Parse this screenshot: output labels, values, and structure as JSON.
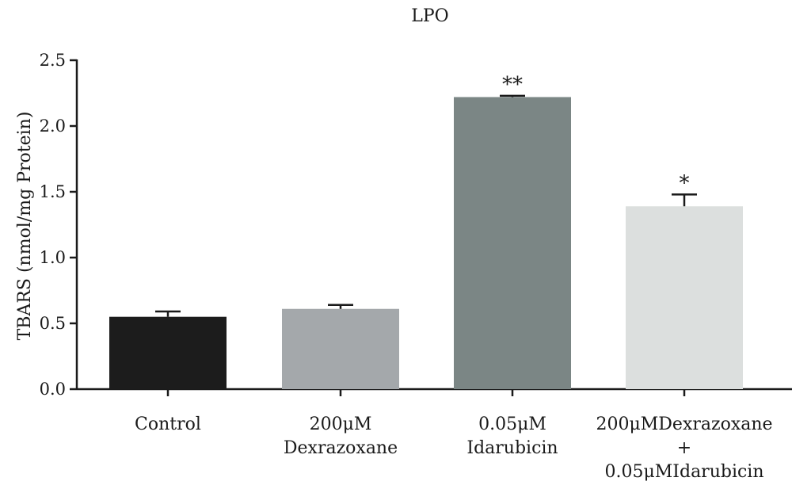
{
  "chart_data": {
    "type": "bar",
    "title": "LPO",
    "ylabel": "TBARS (nmol/mg Protein)",
    "xlabel": "",
    "ylim": [
      0,
      2.5
    ],
    "yticks": [
      "0.0",
      "0.5",
      "1.0",
      "1.5",
      "2.0",
      "2.5"
    ],
    "categories": [
      [
        "Control"
      ],
      [
        "200μM",
        "Dexrazoxane"
      ],
      [
        "0.05μM",
        "Idarubicin"
      ],
      [
        "200μMDexrazoxane",
        "+",
        "0.05μMIdarubicin"
      ]
    ],
    "values": [
      0.55,
      0.61,
      2.22,
      1.39
    ],
    "errors": [
      0.04,
      0.03,
      0.01,
      0.09
    ],
    "annotations": [
      "",
      "",
      "**",
      "*"
    ],
    "colors": [
      "#1c1c1c",
      "#a4a8ab",
      "#7b8685",
      "#dcdfde"
    ]
  }
}
